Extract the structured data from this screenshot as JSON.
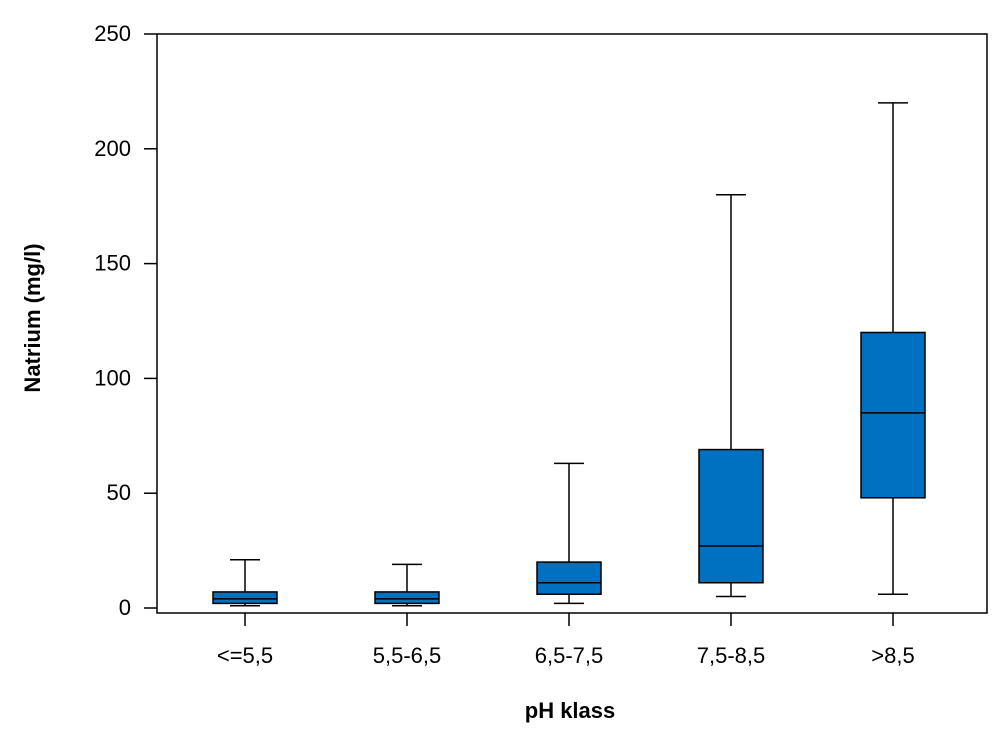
{
  "chart_data": {
    "type": "boxplot",
    "title": "",
    "xlabel": "pH klass",
    "ylabel": "Natrium (mg/l)",
    "ylim": [
      0,
      250
    ],
    "yticks": [
      0,
      50,
      100,
      150,
      200,
      250
    ],
    "grid": false,
    "legend": "none",
    "box_color": "#0070C0",
    "categories": [
      "<=5,5",
      "5,5-6,5",
      "6,5-7,5",
      "7,5-8,5",
      ">8,5"
    ],
    "boxes": [
      {
        "category": "<=5,5",
        "whisker_low": 1,
        "q1": 2,
        "median": 4,
        "q3": 7,
        "whisker_high": 21
      },
      {
        "category": "5,5-6,5",
        "whisker_low": 1,
        "q1": 2,
        "median": 4,
        "q3": 7,
        "whisker_high": 19
      },
      {
        "category": "6,5-7,5",
        "whisker_low": 2,
        "q1": 6,
        "median": 11,
        "q3": 20,
        "whisker_high": 63
      },
      {
        "category": "7,5-8,5",
        "whisker_low": 5,
        "q1": 11,
        "median": 27,
        "q3": 69,
        "whisker_high": 180
      },
      {
        "category": ">8,5",
        "whisker_low": 6,
        "q1": 48,
        "median": 85,
        "q3": 120,
        "whisker_high": 220
      }
    ]
  }
}
